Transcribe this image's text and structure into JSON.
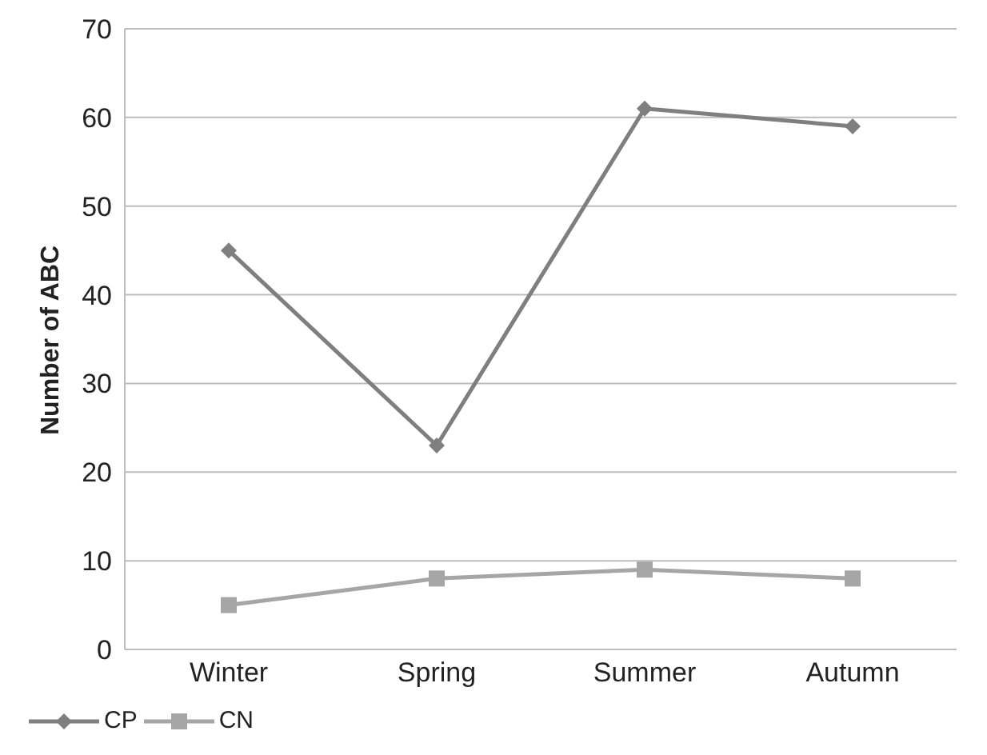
{
  "chart_data": {
    "type": "line",
    "ylabel": "Number of ABC",
    "categories": [
      "Winter",
      "Spring",
      "Summer",
      "Autumn"
    ],
    "series": [
      {
        "name": "CP",
        "color": "#7f7f7f",
        "values": [
          45,
          23,
          61,
          59
        ],
        "marker": "diamond"
      },
      {
        "name": "CN",
        "color": "#a6a6a6",
        "values": [
          5,
          8,
          9,
          8
        ],
        "marker": "square"
      }
    ],
    "ylim": [
      0,
      70
    ],
    "yticks": [
      0,
      10,
      20,
      30,
      40,
      50,
      60,
      70
    ],
    "grid": "y",
    "legend": "bottom left"
  }
}
